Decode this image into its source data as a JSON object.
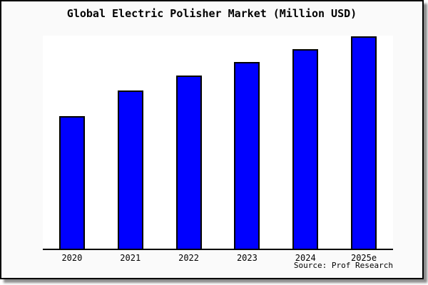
{
  "window": {
    "background": "#fafafa",
    "plot_background": "#ffffff",
    "border_color": "#000000",
    "shadow_color": "#999999"
  },
  "header": {
    "title": "Global Electric Polisher Market (Million USD)"
  },
  "footer": {
    "source_credit": "Source: Prof Research"
  },
  "chart_data": {
    "type": "bar",
    "title": "Global Electric Polisher Market (Million USD)",
    "categories": [
      "2020",
      "2021",
      "2022",
      "2023",
      "2024",
      "2025e"
    ],
    "values": [
      62.1,
      74.4,
      81.4,
      87.7,
      93.7,
      99.7
    ],
    "value_scale": "relative-percent-of-plot-height; y-axis is unlabeled in the image",
    "xlabel": "",
    "ylabel": "",
    "ylim": [
      0,
      100
    ],
    "grid": false,
    "legend": false,
    "bar_color": "#0000ff",
    "bar_border_color": "#000000",
    "axis_color": "#000000",
    "annotations": [
      "Source: Prof Research"
    ]
  }
}
